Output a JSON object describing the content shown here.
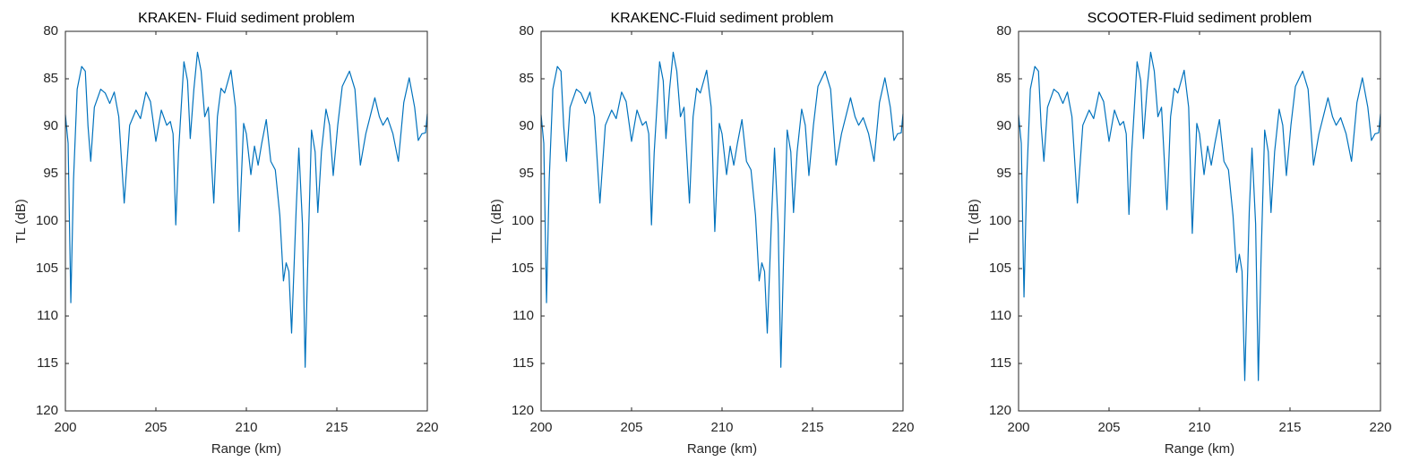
{
  "chart_data": [
    {
      "type": "line",
      "title": "KRAKEN- Fluid sediment problem",
      "x_label": "Range (km)",
      "y_label": "TL (dB)",
      "xlim": [
        200,
        220
      ],
      "xticks": [
        200,
        205,
        210,
        215,
        220
      ],
      "ylim": [
        80,
        120
      ],
      "yticks": [
        80,
        85,
        90,
        95,
        100,
        105,
        110,
        115,
        120
      ],
      "y_direction": "reverse",
      "x": [
        200,
        200.15,
        200.3,
        200.45,
        200.65,
        200.9,
        201.1,
        201.25,
        201.4,
        201.6,
        201.95,
        202.2,
        202.45,
        202.7,
        202.95,
        203.25,
        203.55,
        203.9,
        204.15,
        204.45,
        204.7,
        205,
        205.3,
        205.6,
        205.8,
        205.95,
        206.1,
        206.25,
        206.55,
        206.75,
        206.9,
        207.1,
        207.3,
        207.5,
        207.7,
        207.9,
        208.2,
        208.4,
        208.6,
        208.8,
        209.15,
        209.4,
        209.6,
        209.85,
        210,
        210.25,
        210.45,
        210.65,
        210.85,
        211.1,
        211.35,
        211.6,
        211.85,
        212.05,
        212.2,
        212.35,
        212.5,
        212.75,
        212.9,
        213.1,
        213.25,
        213.4,
        213.6,
        213.8,
        213.95,
        214.15,
        214.4,
        214.6,
        214.8,
        215.05,
        215.3,
        215.7,
        216,
        216.3,
        216.6,
        217.1,
        217.35,
        217.55,
        217.8,
        218.1,
        218.4,
        218.7,
        219,
        219.3,
        219.5,
        219.7,
        219.9,
        220
      ],
      "series": [
        {
          "color": "#0072bd",
          "values": [
            88.8,
            91.8,
            108.6,
            95.6,
            86.1,
            83.7,
            84.2,
            90,
            93.7,
            88,
            86.1,
            86.5,
            87.6,
            86.4,
            89,
            98.1,
            89.9,
            88.3,
            89.2,
            86.4,
            87.4,
            91.6,
            88.3,
            89.9,
            89.5,
            90.8,
            100.4,
            92.8,
            83.2,
            85.2,
            91.3,
            86.1,
            82.2,
            84.2,
            89,
            88,
            98.1,
            89,
            86,
            86.5,
            84.1,
            88,
            101.1,
            89.7,
            90.8,
            95.1,
            92.1,
            94.1,
            91.8,
            89.3,
            93.7,
            94.6,
            99.4,
            106.3,
            104.4,
            105.3,
            111.8,
            98.9,
            92.3,
            100.3,
            115.4,
            104,
            90.4,
            92.7,
            99.1,
            92.7,
            88.2,
            89.9,
            95.2,
            89.9,
            85.8,
            84.2,
            86.1,
            94.1,
            90.8,
            87,
            89,
            89.9,
            89.1,
            90.8,
            93.7,
            87.5,
            84.9,
            88,
            91.5,
            90.8,
            90.7,
            88.7
          ]
        }
      ]
    },
    {
      "type": "line",
      "title": "KRAKENC-Fluid sediment problem",
      "x_label": "Range (km)",
      "y_label": "TL (dB)",
      "xlim": [
        200,
        220
      ],
      "xticks": [
        200,
        205,
        210,
        215,
        220
      ],
      "ylim": [
        80,
        120
      ],
      "yticks": [
        80,
        85,
        90,
        95,
        100,
        105,
        110,
        115,
        120
      ],
      "y_direction": "reverse",
      "x": [
        200,
        200.15,
        200.3,
        200.45,
        200.65,
        200.9,
        201.1,
        201.25,
        201.4,
        201.6,
        201.95,
        202.2,
        202.45,
        202.7,
        202.95,
        203.25,
        203.55,
        203.9,
        204.15,
        204.45,
        204.7,
        205,
        205.3,
        205.6,
        205.8,
        205.95,
        206.1,
        206.25,
        206.55,
        206.75,
        206.9,
        207.1,
        207.3,
        207.5,
        207.7,
        207.9,
        208.2,
        208.4,
        208.6,
        208.8,
        209.15,
        209.4,
        209.6,
        209.85,
        210,
        210.25,
        210.45,
        210.65,
        210.85,
        211.1,
        211.35,
        211.6,
        211.85,
        212.05,
        212.2,
        212.35,
        212.5,
        212.75,
        212.9,
        213.1,
        213.25,
        213.4,
        213.6,
        213.8,
        213.95,
        214.15,
        214.4,
        214.6,
        214.8,
        215.05,
        215.3,
        215.7,
        216,
        216.3,
        216.6,
        217.1,
        217.35,
        217.55,
        217.8,
        218.1,
        218.4,
        218.7,
        219,
        219.3,
        219.5,
        219.7,
        219.9,
        220
      ],
      "series": [
        {
          "color": "#0072bd",
          "values": [
            88.8,
            91.8,
            108.6,
            95.6,
            86.1,
            83.7,
            84.2,
            90,
            93.7,
            88,
            86.1,
            86.5,
            87.6,
            86.4,
            89,
            98.1,
            89.9,
            88.3,
            89.2,
            86.4,
            87.4,
            91.6,
            88.3,
            89.9,
            89.5,
            90.8,
            100.4,
            92.8,
            83.2,
            85.2,
            91.3,
            86.1,
            82.2,
            84.2,
            89,
            88,
            98.1,
            89,
            86,
            86.5,
            84.1,
            88,
            101.1,
            89.7,
            90.8,
            95.1,
            92.1,
            94.1,
            91.8,
            89.3,
            93.7,
            94.6,
            99.4,
            106.3,
            104.4,
            105.3,
            111.8,
            98.9,
            92.3,
            100.3,
            115.4,
            104,
            90.4,
            92.7,
            99.1,
            92.7,
            88.2,
            89.9,
            95.2,
            89.9,
            85.8,
            84.2,
            86.1,
            94.1,
            90.8,
            87,
            89,
            89.9,
            89.1,
            90.8,
            93.7,
            87.5,
            84.9,
            88,
            91.5,
            90.8,
            90.7,
            88.7
          ]
        }
      ]
    },
    {
      "type": "line",
      "title": "SCOOTER-Fluid sediment problem",
      "x_label": "Range (km)",
      "y_label": "TL (dB)",
      "xlim": [
        200,
        220
      ],
      "xticks": [
        200,
        205,
        210,
        215,
        220
      ],
      "ylim": [
        80,
        120
      ],
      "yticks": [
        80,
        85,
        90,
        95,
        100,
        105,
        110,
        115,
        120
      ],
      "y_direction": "reverse",
      "x": [
        200,
        200.15,
        200.3,
        200.45,
        200.65,
        200.9,
        201.1,
        201.25,
        201.4,
        201.6,
        201.95,
        202.2,
        202.45,
        202.7,
        202.95,
        203.25,
        203.55,
        203.9,
        204.15,
        204.45,
        204.7,
        205,
        205.3,
        205.6,
        205.8,
        205.95,
        206.1,
        206.25,
        206.55,
        206.75,
        206.9,
        207.1,
        207.3,
        207.5,
        207.7,
        207.9,
        208.2,
        208.4,
        208.6,
        208.8,
        209.15,
        209.4,
        209.6,
        209.85,
        210,
        210.25,
        210.45,
        210.65,
        210.85,
        211.1,
        211.35,
        211.6,
        211.85,
        212.05,
        212.2,
        212.35,
        212.5,
        212.75,
        212.9,
        213.1,
        213.25,
        213.4,
        213.6,
        213.8,
        213.95,
        214.15,
        214.4,
        214.6,
        214.8,
        215.05,
        215.3,
        215.7,
        216,
        216.3,
        216.6,
        217.1,
        217.35,
        217.55,
        217.8,
        218.1,
        218.4,
        218.7,
        219,
        219.3,
        219.5,
        219.7,
        219.9,
        220
      ],
      "series": [
        {
          "color": "#0072bd",
          "values": [
            88.8,
            91.8,
            108,
            95.6,
            86.1,
            83.7,
            84.2,
            90,
            93.7,
            88,
            86.1,
            86.5,
            87.6,
            86.4,
            89,
            98.1,
            89.9,
            88.3,
            89.2,
            86.4,
            87.4,
            91.6,
            88.3,
            89.9,
            89.5,
            90.8,
            99.3,
            92.8,
            83.2,
            85.2,
            91.3,
            86.1,
            82.2,
            84.2,
            89,
            88,
            98.8,
            89,
            86,
            86.5,
            84.1,
            88,
            101.3,
            89.7,
            90.8,
            95.1,
            92.1,
            94.1,
            91.8,
            89.3,
            93.7,
            94.6,
            99.4,
            105.4,
            103.5,
            105.3,
            116.8,
            98.9,
            92.3,
            100.3,
            116.8,
            104,
            90.4,
            92.7,
            99.1,
            92.7,
            88.2,
            89.9,
            95.2,
            89.9,
            85.8,
            84.2,
            86.1,
            94.1,
            90.8,
            87,
            89,
            89.9,
            89.1,
            90.8,
            93.7,
            87.5,
            84.9,
            88,
            91.5,
            90.8,
            90.7,
            88.7
          ]
        }
      ]
    }
  ]
}
